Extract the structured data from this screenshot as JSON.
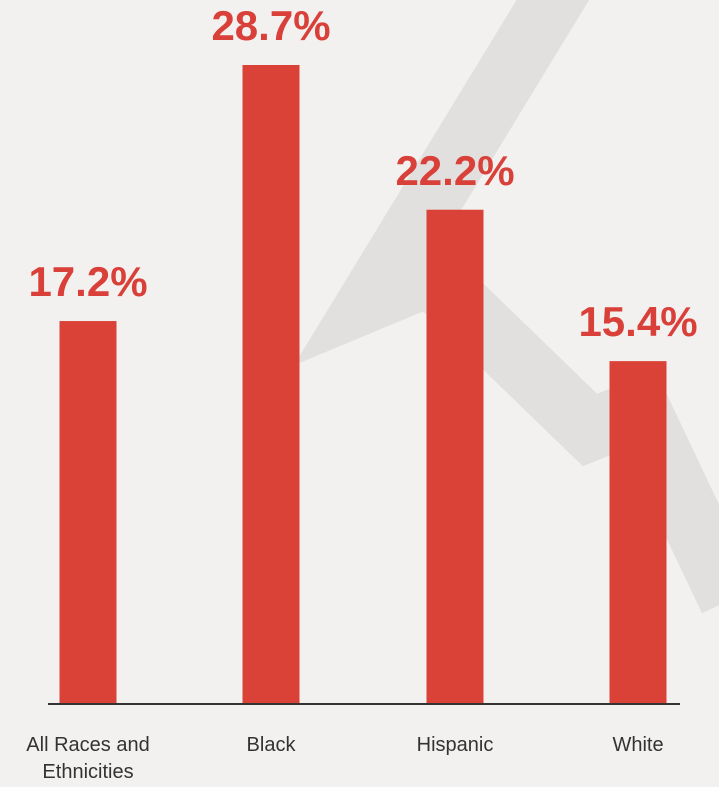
{
  "chart_data": {
    "type": "bar",
    "categories": [
      "All Races and Ethnicities",
      "Black",
      "Hispanic",
      "White"
    ],
    "values": [
      17.2,
      28.7,
      22.2,
      15.4
    ],
    "value_labels": [
      "17.2%",
      "28.7%",
      "22.2%",
      "15.4%"
    ],
    "color": "#db4237"
  }
}
